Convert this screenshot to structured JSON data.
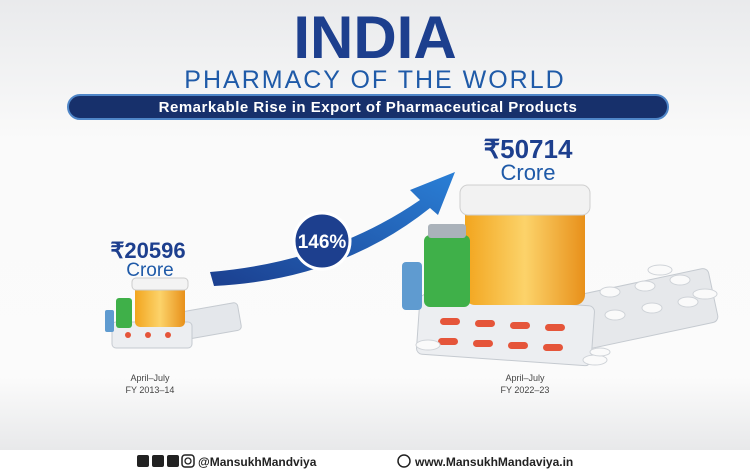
{
  "header": {
    "title": "INDIA",
    "subtitle": "PHARMACY OF THE WORLD",
    "banner": "Remarkable Rise in Export of Pharmaceutical Products"
  },
  "left": {
    "amount": "₹20596",
    "unit": "Crore",
    "period": "April–July",
    "year": "FY 2013–14"
  },
  "right": {
    "amount": "₹50714",
    "unit": "Crore",
    "period": "April–July",
    "year": "FY 2022–23"
  },
  "growth": "146%",
  "footer": {
    "handle": "@MansukhMandviya",
    "website": "www.MansukhMandaviya.in"
  }
}
